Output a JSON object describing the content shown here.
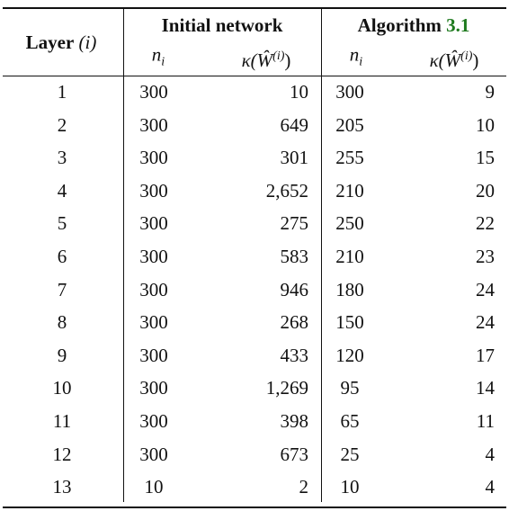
{
  "table": {
    "header": {
      "layer": {
        "label": "Layer",
        "var": "(i)"
      },
      "groups": [
        {
          "label": "Initial network"
        },
        {
          "label": "Algorithm",
          "ref": "3.1"
        }
      ],
      "columns": [
        {
          "base": "n",
          "sub": "i"
        },
        {
          "base": "κ(Ŵ",
          "sup": "(i)",
          "close": ")"
        },
        {
          "base": "n",
          "sub": "i"
        },
        {
          "base": "κ(Ŵ",
          "sup": "(i)",
          "close": ")"
        }
      ]
    },
    "rows": [
      [
        "1",
        "300",
        "10",
        "300",
        "9"
      ],
      [
        "2",
        "300",
        "649",
        "205",
        "10"
      ],
      [
        "3",
        "300",
        "301",
        "255",
        "15"
      ],
      [
        "4",
        "300",
        "2,652",
        "210",
        "20"
      ],
      [
        "5",
        "300",
        "275",
        "250",
        "22"
      ],
      [
        "6",
        "300",
        "583",
        "210",
        "23"
      ],
      [
        "7",
        "300",
        "946",
        "180",
        "24"
      ],
      [
        "8",
        "300",
        "268",
        "150",
        "24"
      ],
      [
        "9",
        "300",
        "433",
        "120",
        "17"
      ],
      [
        "10",
        "300",
        "1,269",
        "95",
        "14"
      ],
      [
        "11",
        "300",
        "398",
        "65",
        "11"
      ],
      [
        "12",
        "300",
        "673",
        "25",
        "4"
      ],
      [
        "13",
        "10",
        "2",
        "10",
        "4"
      ]
    ]
  }
}
